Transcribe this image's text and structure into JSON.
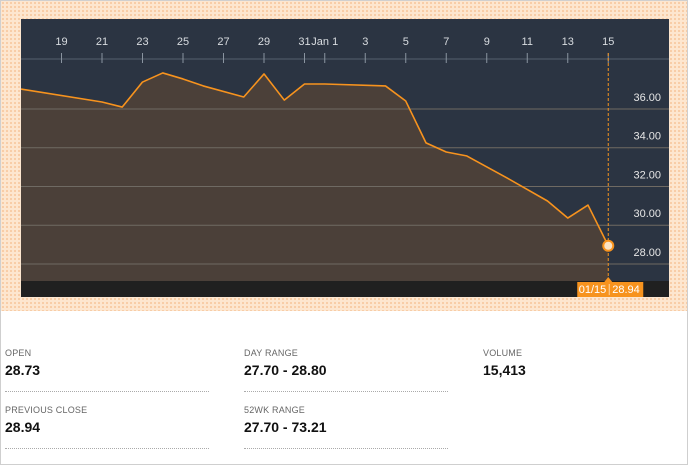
{
  "chart_data": {
    "type": "line",
    "color": "#f7931e",
    "fill": "#4b4039",
    "grid": true,
    "x": [
      17,
      21,
      22,
      23,
      24,
      25,
      26,
      28,
      29,
      30,
      31,
      32,
      35,
      36,
      37,
      38,
      39,
      41,
      43,
      44,
      45,
      46
    ],
    "values": [
      37.03,
      36.36,
      36.1,
      37.39,
      37.86,
      37.55,
      37.19,
      36.62,
      37.81,
      36.46,
      37.29,
      37.29,
      37.19,
      36.41,
      34.25,
      33.78,
      33.58,
      32.44,
      31.25,
      30.37,
      31.04,
      28.94
    ],
    "xlim": [
      17,
      49
    ],
    "xticks": [
      19,
      21,
      23,
      25,
      27,
      29,
      31,
      {
        "value": 32,
        "label": "Jan 1"
      },
      {
        "value": 34,
        "label": "3"
      },
      {
        "value": 36,
        "label": "5"
      },
      {
        "value": 38,
        "label": "7"
      },
      {
        "value": 40,
        "label": "9"
      },
      {
        "value": 42,
        "label": "11"
      },
      {
        "value": 44,
        "label": "13"
      },
      {
        "value": 46,
        "label": "15"
      }
    ],
    "ylim": [
      27.12,
      38.58
    ],
    "yticks": [
      {
        "value": 28,
        "label": "28.00"
      },
      {
        "value": 30,
        "label": "30.00"
      },
      {
        "value": 32,
        "label": "32.00"
      },
      {
        "value": 34,
        "label": "34.00"
      },
      {
        "value": 36,
        "label": "36.00"
      }
    ],
    "crosshair_label": "01/15"
  },
  "stats": [
    {
      "label": "OPEN",
      "value": "28.73"
    },
    {
      "label": "DAY RANGE",
      "value": "27.70 - 28.80"
    },
    {
      "label": "VOLUME",
      "value": "15,413"
    },
    {
      "label": "PREVIOUS CLOSE",
      "value": "28.94"
    },
    {
      "label": "52WK RANGE",
      "value": "27.70 - 73.21"
    }
  ]
}
